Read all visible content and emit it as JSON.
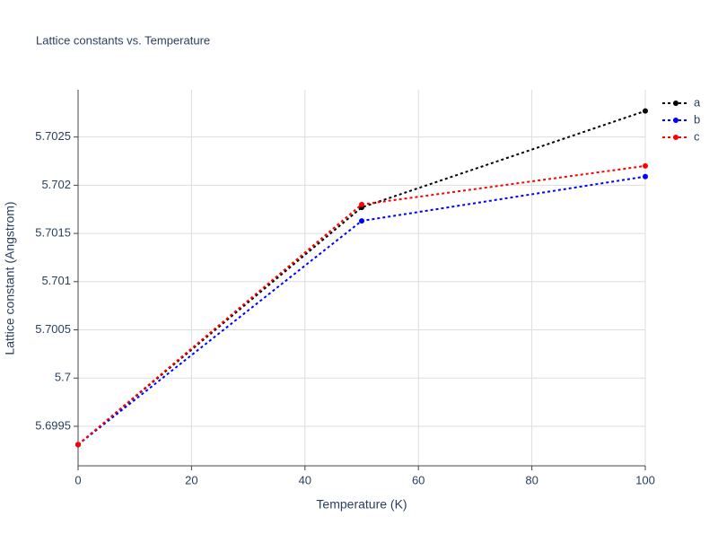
{
  "chart_data": {
    "type": "line",
    "title": "Lattice constants vs. Temperature",
    "x_label": "Temperature (K)",
    "y_label": "Lattice constant (Angstrom)",
    "x": [
      0,
      50,
      100
    ],
    "series": [
      {
        "name": "a",
        "color": "#000000",
        "values": [
          5.69931,
          5.70177,
          5.70277
        ]
      },
      {
        "name": "b",
        "color": "#0000ff",
        "values": [
          5.69931,
          5.70163,
          5.70209
        ]
      },
      {
        "name": "c",
        "color": "#ff0000",
        "values": [
          5.69931,
          5.7018,
          5.7022
        ]
      }
    ],
    "xlim": [
      0,
      100
    ],
    "xticks": [
      0,
      20,
      40,
      60,
      80,
      100
    ],
    "ylim": [
      5.69909,
      5.70299
    ],
    "yticks": [
      5.6995,
      5.7,
      5.7005,
      5.701,
      5.7015,
      5.702,
      5.7025
    ],
    "grid": true,
    "legend": "top-right"
  }
}
